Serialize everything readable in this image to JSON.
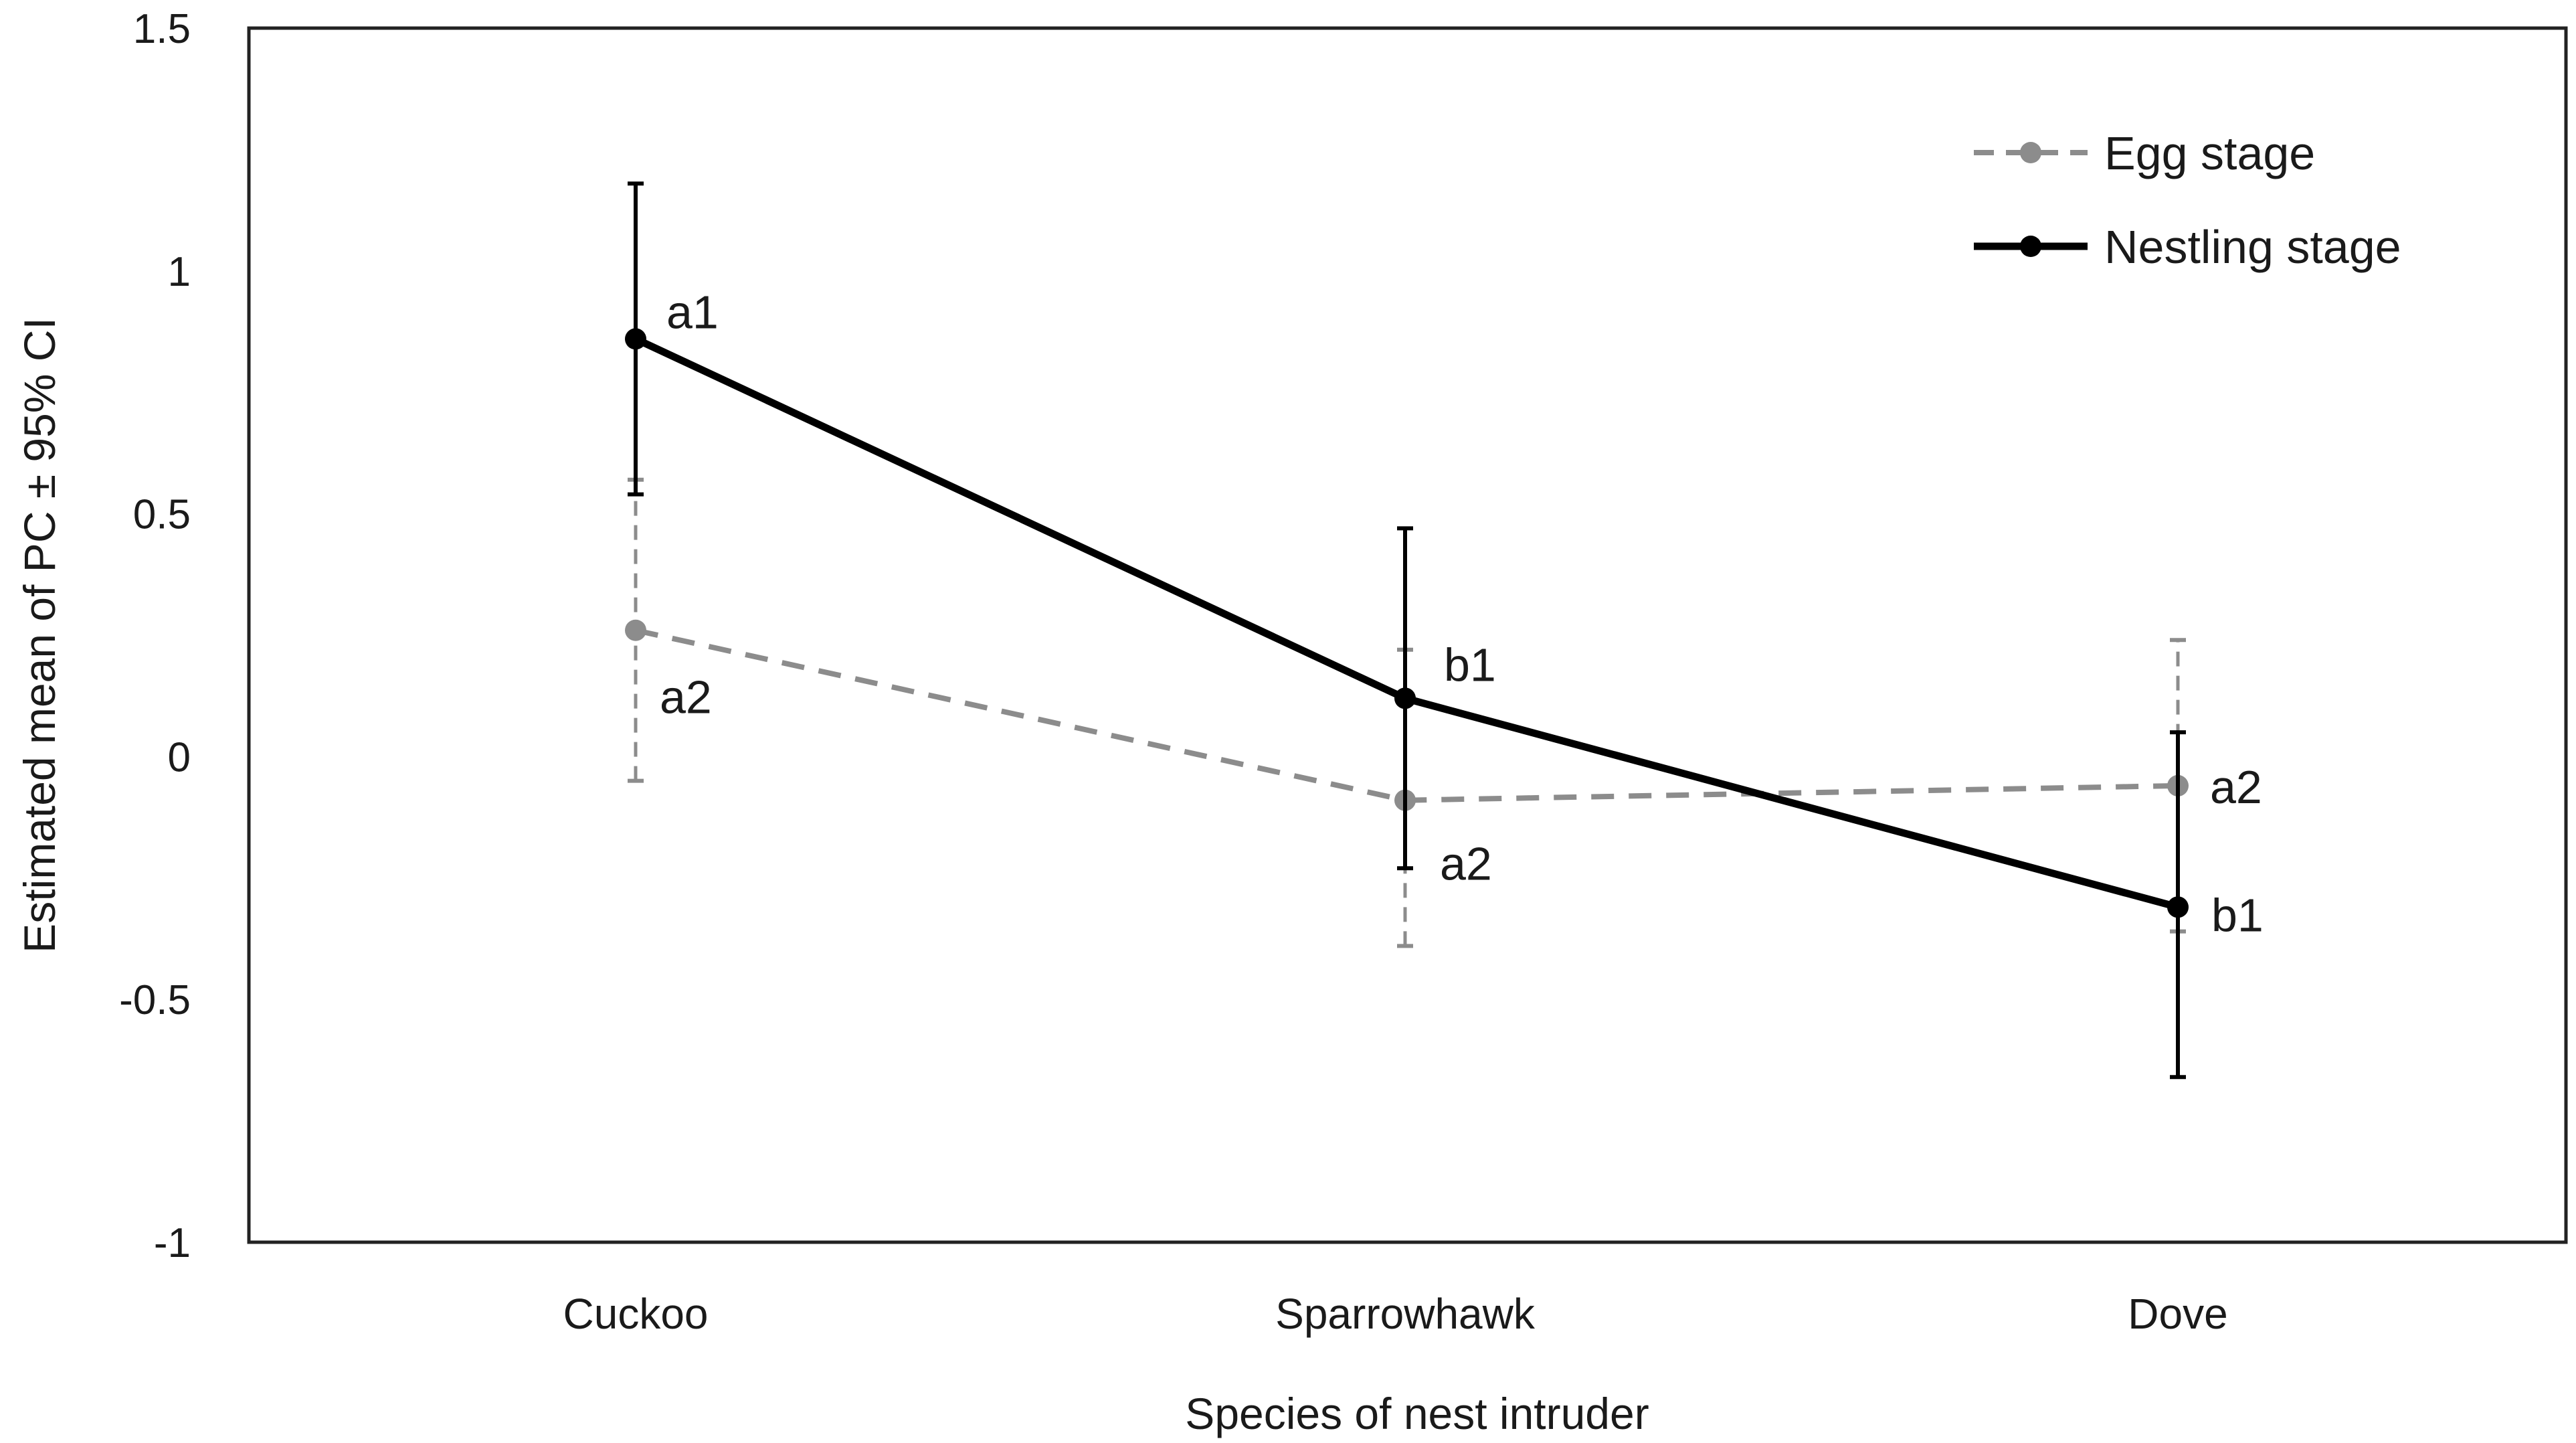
{
  "chart_data": {
    "type": "line",
    "title": "",
    "xlabel": "Species of nest intruder",
    "ylabel": "Estimated mean of PC ± 95% CI",
    "categories": [
      "Cuckoo",
      "Sparrowhawk",
      "Dove"
    ],
    "ylim": [
      -1,
      1.5
    ],
    "yticks": [
      1.5,
      1,
      0.5,
      0,
      -0.5,
      -1
    ],
    "ytick_labels": [
      "1.5",
      "1",
      "0.5",
      "0",
      "-0.5",
      "-1"
    ],
    "grid": false,
    "legend_position": "top-right",
    "series": [
      {
        "name": "Egg stage",
        "color": "#8c8c8c",
        "style": "dashed",
        "values": [
          0.26,
          -0.09,
          -0.06
        ],
        "ci_lower": [
          -0.05,
          -0.39,
          -0.36
        ],
        "ci_upper": [
          0.57,
          0.22,
          0.24
        ],
        "labels": [
          "a2",
          "a2",
          "a2"
        ]
      },
      {
        "name": "Nestling stage",
        "color": "#000000",
        "style": "solid",
        "values": [
          0.86,
          0.12,
          -0.31
        ],
        "ci_lower": [
          0.54,
          -0.23,
          -0.66
        ],
        "ci_upper": [
          1.18,
          0.47,
          0.05
        ],
        "labels": [
          "a1",
          "b1",
          "b1"
        ]
      }
    ]
  }
}
